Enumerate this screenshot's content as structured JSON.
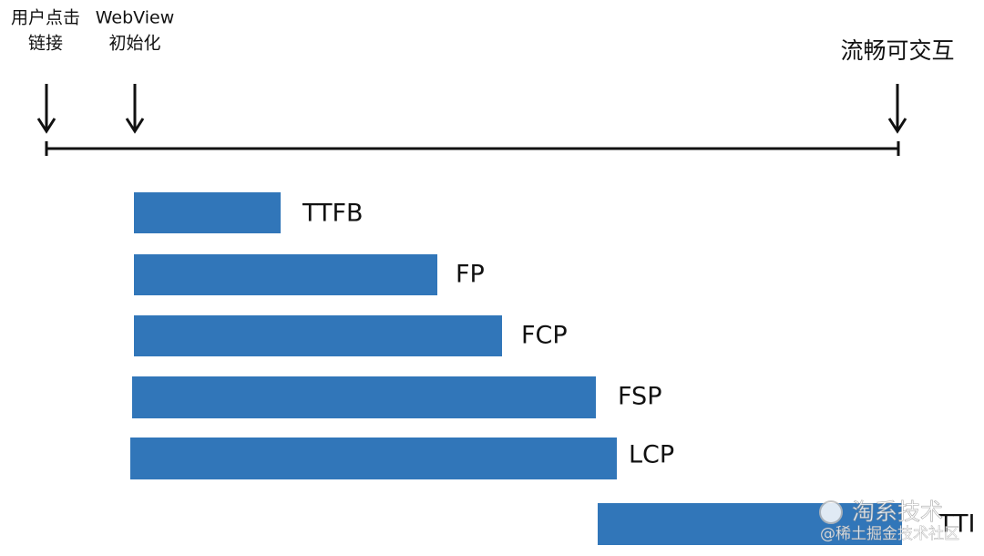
{
  "timeline": {
    "markers": [
      {
        "lines": [
          "用户点击",
          "链接"
        ]
      },
      {
        "lines": [
          "WebView",
          "初始化"
        ]
      },
      {
        "lines": [
          "流畅可交互"
        ]
      }
    ]
  },
  "metrics": [
    "TTFB",
    "FP",
    "FCP",
    "FSP",
    "LCP",
    "TTI"
  ],
  "watermark": {
    "title": "淘系技术",
    "source": "@稀土掘金技术社区"
  }
}
